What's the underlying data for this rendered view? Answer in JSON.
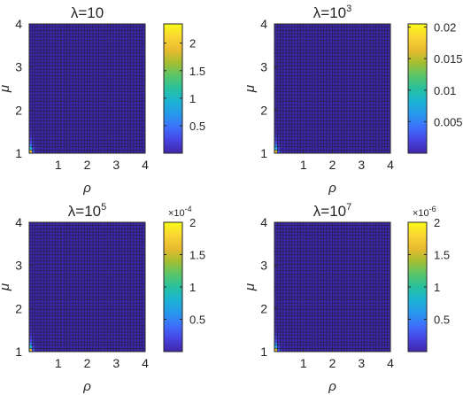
{
  "figure": {
    "layout": "2x2 grid of heatmaps with colorbars"
  },
  "chart_data": [
    {
      "type": "heatmap",
      "title": "λ=10",
      "title_base": "λ=10",
      "title_exp": "",
      "xlabel": "ρ",
      "ylabel": "μ",
      "xlim": [
        0,
        4
      ],
      "ylim": [
        1,
        4
      ],
      "xticks": [
        "1",
        "2",
        "3",
        "4"
      ],
      "yticks": [
        "1",
        "2",
        "3",
        "4"
      ],
      "colorbar": {
        "min": 0,
        "max": 2.35,
        "ticks": [
          0.5,
          1,
          1.5,
          2
        ],
        "tick_labels": [
          "0.5",
          "1",
          "1.5",
          "2"
        ],
        "multiplier_base": "",
        "multiplier_exp": ""
      },
      "colormap": "parula",
      "peak_value": 2.35,
      "peak_location": {
        "rho": 0.05,
        "mu": 1.0
      },
      "background_value": 0.0,
      "note": "values near zero everywhere except small rho near mu=1"
    },
    {
      "type": "heatmap",
      "title": "λ=10^3",
      "title_base": "λ=10",
      "title_exp": "3",
      "xlabel": "ρ",
      "ylabel": "μ",
      "xlim": [
        0,
        4
      ],
      "ylim": [
        1,
        4
      ],
      "xticks": [
        "1",
        "2",
        "3",
        "4"
      ],
      "yticks": [
        "1",
        "2",
        "3",
        "4"
      ],
      "colorbar": {
        "min": 0,
        "max": 0.0205,
        "ticks": [
          0.005,
          0.01,
          0.015,
          0.02
        ],
        "tick_labels": [
          "0.005",
          "0.01",
          "0.015",
          "0.02"
        ],
        "multiplier_base": "",
        "multiplier_exp": ""
      },
      "colormap": "parula",
      "peak_value": 0.0205,
      "peak_location": {
        "rho": 0.05,
        "mu": 1.0
      },
      "background_value": 0.0
    },
    {
      "type": "heatmap",
      "title": "λ=10^5",
      "title_base": "λ=10",
      "title_exp": "5",
      "xlabel": "ρ",
      "ylabel": "μ",
      "xlim": [
        0,
        4
      ],
      "ylim": [
        1,
        4
      ],
      "xticks": [
        "1",
        "2",
        "3",
        "4"
      ],
      "yticks": [
        "1",
        "2",
        "3",
        "4"
      ],
      "colorbar": {
        "min": 0,
        "max": 2.0,
        "ticks": [
          0.5,
          1,
          1.5,
          2
        ],
        "tick_labels": [
          "0.5",
          "1",
          "1.5",
          "2"
        ],
        "multiplier_base": "×10",
        "multiplier_exp": "-4"
      },
      "colormap": "parula",
      "peak_value": 2.0,
      "peak_location": {
        "rho": 0.05,
        "mu": 1.0
      },
      "background_value": 0.0
    },
    {
      "type": "heatmap",
      "title": "λ=10^7",
      "title_base": "λ=10",
      "title_exp": "7",
      "xlabel": "ρ",
      "ylabel": "μ",
      "xlim": [
        0,
        4
      ],
      "ylim": [
        1,
        4
      ],
      "xticks": [
        "1",
        "2",
        "3",
        "4"
      ],
      "yticks": [
        "1",
        "2",
        "3",
        "4"
      ],
      "colorbar": {
        "min": 0,
        "max": 2.0,
        "ticks": [
          0.5,
          1,
          1.5,
          2
        ],
        "tick_labels": [
          "0.5",
          "1",
          "1.5",
          "2"
        ],
        "multiplier_base": "×10",
        "multiplier_exp": "-6"
      },
      "colormap": "parula",
      "peak_value": 2.0,
      "peak_location": {
        "rho": 0.05,
        "mu": 1.0
      },
      "background_value": 0.0
    }
  ],
  "colors": {
    "parula_stops": [
      "#3e26a8",
      "#4743e3",
      "#3e6ffb",
      "#2797eb",
      "#1cb3d3",
      "#27c19f",
      "#5ac568",
      "#a5be30",
      "#eaba30",
      "#f9d634",
      "#f9fb15"
    ],
    "grid_line": "#202040"
  }
}
